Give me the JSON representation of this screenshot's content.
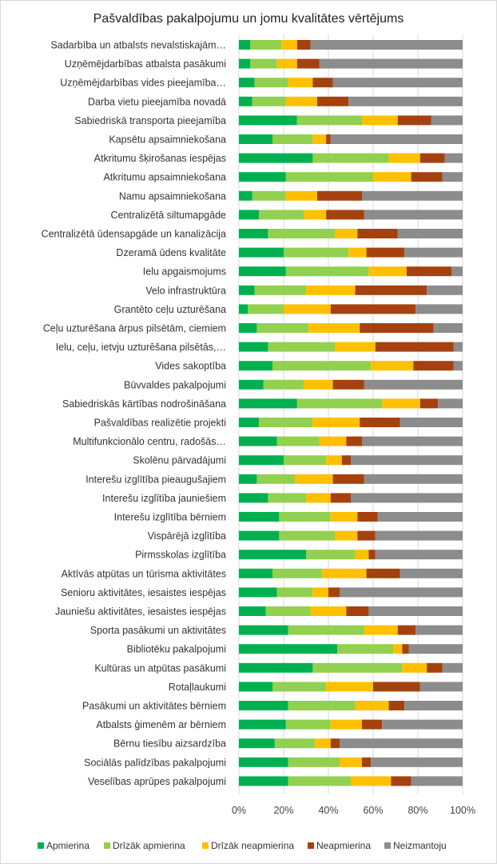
{
  "chart_data": {
    "type": "bar",
    "orientation": "horizontal",
    "stacked": "percent",
    "title": "Pašvaldības pakalpojumu un jomu kvalitātes vērtējums",
    "categories": [
      "Sadarbība un atbalsts nevalstiskajām…",
      "Uzņēmējdarbības atbalsta pasākumi",
      "Uzņēmējdarbības vides pieejamība…",
      "Darba vietu pieejamība novadā",
      "Sabiedriskā transporta pieejamība",
      "Kapsētu apsaimniekošana",
      "Atkritumu šķirošanas iespējas",
      "Atkritumu apsaimniekošana",
      "Namu apsaimniekošana",
      "Centralizētā siltumapgāde",
      "Centralizētā ūdensapgāde un kanalizācija",
      "Dzeramā ūdens kvalitāte",
      "Ielu apgaismojums",
      "Velo infrastruktūra",
      "Grantēto ceļu uzturēšana",
      "Ceļu uzturēšana ārpus pilsētām, ciemiem",
      "Ielu, ceļu, ietvju uzturēšana pilsētās,…",
      "Vides sakoptība",
      "Būvvaldes pakalpojumi",
      "Sabiedriskās kārtības nodrošināšana",
      "Pašvaldības realizētie projekti",
      "Multifunkcionālo centru, radošās…",
      "Skolēnu pārvadājumi",
      "Interešu izglītība pieaugušajiem",
      "Interešu izglītība jauniešiem",
      "Interešu izglītība bērniem",
      "Vispārējā izglītība",
      "Pirmsskolas izglītība",
      "Aktīvās atpūtas un tūrisma aktivitātes",
      "Senioru aktivitātes, iesaistes iespējas",
      "Jauniešu aktivitātes, iesaistes iespējas",
      "Sporta pasākumi un aktivitātes",
      "Bibliotēku pakalpojumi",
      "Kultūras un atpūtas pasākumi",
      "Rotaļlaukumi",
      "Pasākumi un aktivitātes bērniem",
      "Atbalsts ģimenēm ar bērniem",
      "Bērnu tiesību aizsardzība",
      "Sociālās palīdzības pakalpojumi",
      "Veselības aprūpes pakalpojumi"
    ],
    "series": [
      {
        "name": "Apmierina",
        "color": "#00b050",
        "values": [
          5,
          5,
          7,
          6,
          26,
          15,
          33,
          21,
          6,
          9,
          13,
          20,
          21,
          7,
          4,
          8,
          13,
          15,
          11,
          26,
          9,
          17,
          20,
          8,
          13,
          18,
          18,
          30,
          15,
          17,
          12,
          22,
          44,
          33,
          15,
          22,
          21,
          16,
          22,
          22
        ]
      },
      {
        "name": "Drīzāk apmierina",
        "color": "#92d050",
        "values": [
          14,
          12,
          15,
          15,
          29,
          18,
          34,
          39,
          15,
          20,
          30,
          29,
          37,
          23,
          16,
          23,
          30,
          44,
          18,
          38,
          24,
          19,
          19,
          17,
          17,
          23,
          25,
          22,
          22,
          16,
          20,
          34,
          25,
          40,
          24,
          30,
          20,
          18,
          23,
          28
        ]
      },
      {
        "name": "Drīzāk neapmierina",
        "color": "#ffc000",
        "values": [
          7,
          9,
          11,
          14,
          16,
          6,
          14,
          17,
          14,
          10,
          10,
          8,
          17,
          22,
          21,
          23,
          18,
          19,
          13,
          17,
          21,
          12,
          7,
          17,
          11,
          12,
          10,
          6,
          20,
          7,
          16,
          15,
          4,
          11,
          21,
          15,
          14,
          7,
          10,
          18
        ]
      },
      {
        "name": "Neapmierina",
        "color": "#a5410e",
        "values": [
          6,
          10,
          9,
          14,
          15,
          2,
          11,
          14,
          20,
          17,
          18,
          17,
          20,
          32,
          38,
          33,
          35,
          18,
          14,
          8,
          18,
          7,
          4,
          14,
          9,
          9,
          8,
          3,
          15,
          5,
          10,
          8,
          3,
          7,
          21,
          7,
          9,
          4,
          4,
          9
        ]
      },
      {
        "name": "Neizmantoju",
        "color": "#8c8c8c",
        "values": [
          68,
          64,
          58,
          51,
          14,
          59,
          8,
          9,
          45,
          44,
          29,
          26,
          5,
          16,
          21,
          13,
          4,
          4,
          44,
          11,
          28,
          45,
          50,
          44,
          50,
          38,
          39,
          39,
          28,
          55,
          42,
          21,
          24,
          9,
          19,
          26,
          36,
          55,
          41,
          23
        ]
      }
    ],
    "x_axis": {
      "min": 0,
      "max": 100,
      "ticks": [
        "0%",
        "20%",
        "40%",
        "60%",
        "80%",
        "100%"
      ]
    },
    "legend_position": "bottom",
    "grid": true
  }
}
